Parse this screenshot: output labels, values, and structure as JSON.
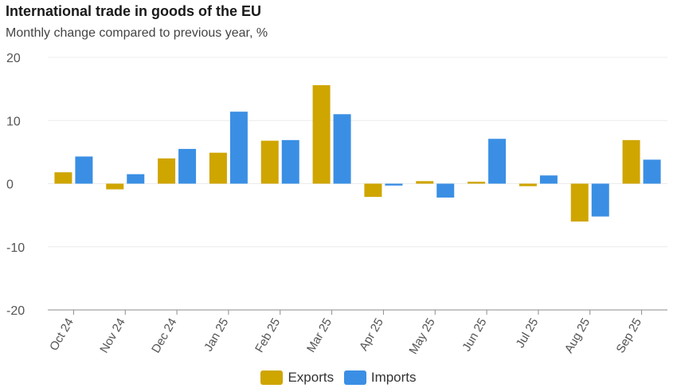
{
  "chart_data": {
    "type": "bar",
    "title": "International trade in goods of the EU",
    "subtitle": "Monthly change compared to previous year, %",
    "categories": [
      "Oct 24",
      "Nov 24",
      "Dec 24",
      "Jan 25",
      "Feb 25",
      "Mar 25",
      "Apr 25",
      "May 25",
      "Jun 25",
      "Jul 25",
      "Aug 25",
      "Sep 25"
    ],
    "series": [
      {
        "name": "Exports",
        "color": "#cfa500",
        "values": [
          1.8,
          -0.9,
          4.0,
          4.9,
          6.8,
          15.6,
          -2.1,
          0.4,
          0.3,
          -0.4,
          -6.0,
          6.9
        ]
      },
      {
        "name": "Imports",
        "color": "#3a8fe4",
        "values": [
          4.3,
          1.5,
          5.5,
          11.4,
          6.9,
          11.0,
          -0.3,
          -2.2,
          7.1,
          1.3,
          -5.2,
          3.8
        ]
      }
    ],
    "ylim": [
      -20,
      20
    ],
    "yticks": [
      -20,
      -10,
      0,
      10,
      20
    ],
    "grid": true,
    "legend_position": "bottom-center",
    "xlabel": "",
    "ylabel": ""
  }
}
